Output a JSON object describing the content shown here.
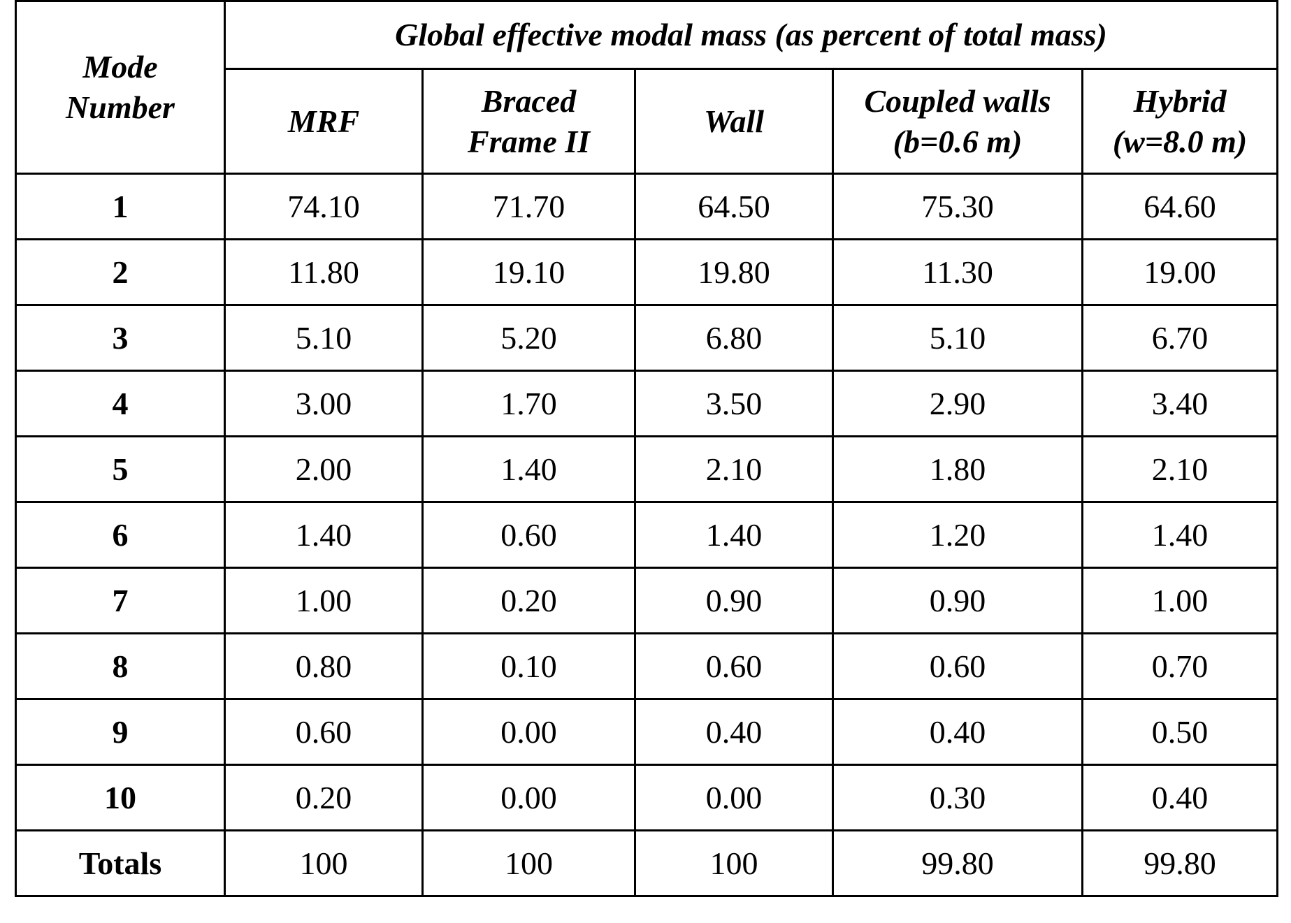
{
  "table": {
    "group_title": "Global effective modal mass (as percent of total mass)",
    "row_label": [
      "Mode",
      "Number"
    ],
    "columns": [
      [
        "MRF"
      ],
      [
        "Braced",
        "Frame II"
      ],
      [
        "Wall"
      ],
      [
        "Coupled walls",
        "(b=0.6 m)"
      ],
      [
        "Hybrid",
        "(w=8.0 m)"
      ]
    ],
    "rows": [
      [
        "1",
        "74.10",
        "71.70",
        "64.50",
        "75.30",
        "64.60"
      ],
      [
        "2",
        "11.80",
        "19.10",
        "19.80",
        "11.30",
        "19.00"
      ],
      [
        "3",
        "5.10",
        "5.20",
        "6.80",
        "5.10",
        "6.70"
      ],
      [
        "4",
        "3.00",
        "1.70",
        "3.50",
        "2.90",
        "3.40"
      ],
      [
        "5",
        "2.00",
        "1.40",
        "2.10",
        "1.80",
        "2.10"
      ],
      [
        "6",
        "1.40",
        "0.60",
        "1.40",
        "1.20",
        "1.40"
      ],
      [
        "7",
        "1.00",
        "0.20",
        "0.90",
        "0.90",
        "1.00"
      ],
      [
        "8",
        "0.80",
        "0.10",
        "0.60",
        "0.60",
        "0.70"
      ],
      [
        "9",
        "0.60",
        "0.00",
        "0.40",
        "0.40",
        "0.50"
      ],
      [
        "10",
        "0.20",
        "0.00",
        "0.00",
        "0.30",
        "0.40"
      ],
      [
        "Totals",
        "100",
        "100",
        "100",
        "99.80",
        "99.80"
      ]
    ]
  }
}
